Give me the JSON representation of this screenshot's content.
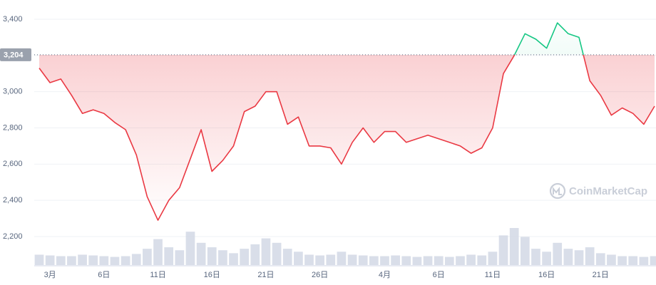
{
  "chart_data": {
    "type": "line",
    "categories": [
      null,
      "3月",
      null,
      null,
      null,
      null,
      "6日",
      null,
      null,
      null,
      null,
      "11日",
      null,
      null,
      null,
      null,
      "16日",
      null,
      null,
      null,
      null,
      "21日",
      null,
      null,
      null,
      null,
      "26日",
      null,
      null,
      null,
      null,
      null,
      "4月",
      null,
      null,
      null,
      null,
      "6日",
      null,
      null,
      null,
      null,
      "11日",
      null,
      null,
      null,
      null,
      "16日",
      null,
      null,
      null,
      null,
      "21日",
      null,
      null,
      null,
      null,
      null
    ],
    "values": [
      3130,
      3050,
      3070,
      2980,
      2880,
      2900,
      2880,
      2830,
      2790,
      2650,
      2420,
      2290,
      2400,
      2470,
      2630,
      2790,
      2560,
      2620,
      2700,
      2890,
      2920,
      3000,
      3000,
      2820,
      2860,
      2700,
      2700,
      2690,
      2600,
      2720,
      2800,
      2720,
      2780,
      2780,
      2720,
      2740,
      2760,
      2740,
      2720,
      2700,
      2660,
      2690,
      2800,
      3100,
      3200,
      3320,
      3290,
      3240,
      3380,
      3320,
      3300,
      3060,
      2980,
      2870,
      2910,
      2880,
      2820,
      2920
    ],
    "volume": [
      14,
      13,
      12,
      12,
      14,
      13,
      12,
      11,
      12,
      15,
      22,
      35,
      24,
      20,
      45,
      30,
      24,
      20,
      16,
      22,
      28,
      36,
      30,
      22,
      18,
      14,
      13,
      14,
      18,
      14,
      13,
      12,
      12,
      13,
      12,
      11,
      12,
      12,
      11,
      12,
      14,
      13,
      18,
      40,
      50,
      38,
      22,
      18,
      30,
      22,
      20,
      24,
      16,
      14,
      12,
      12,
      11,
      12
    ],
    "up_color": "#16c784",
    "down_color": "#ea3943",
    "volume_color": "#cfd6e4",
    "reference_line": {
      "value": 3204,
      "label": "3,204"
    },
    "ylim": [
      2050,
      3500
    ],
    "yticks": [
      {
        "value": 2200,
        "label": "2,200"
      },
      {
        "value": 2400,
        "label": "2,400"
      },
      {
        "value": 2600,
        "label": "2,600"
      },
      {
        "value": 2800,
        "label": "2,800"
      },
      {
        "value": 3000,
        "label": "3,000"
      },
      {
        "value": 3200,
        "label": "3,200"
      },
      {
        "value": 3400,
        "label": "3,400"
      }
    ],
    "grid": true,
    "watermark": "CoinMarketCap"
  }
}
